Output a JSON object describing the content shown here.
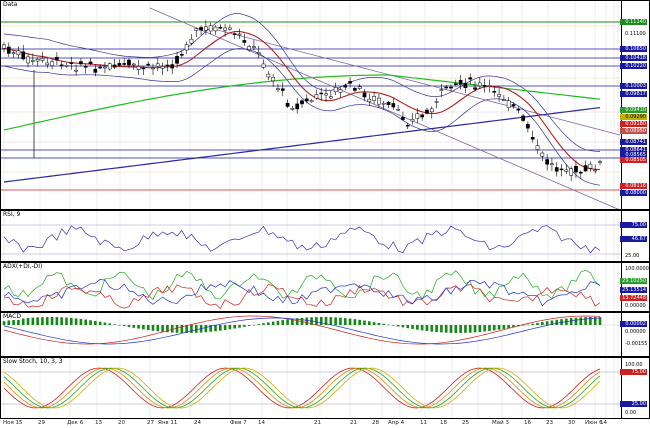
{
  "panels": {
    "price": {
      "title": "Data",
      "ticks": [
        "0.11100",
        "0.10650",
        "0.10050",
        "0.09800",
        "0.09200",
        "0.08600",
        "0.08110",
        "0.08000"
      ]
    },
    "rsi": {
      "title": "RSI, 9",
      "ticks": [
        "75.00",
        "46.67",
        "25.00"
      ]
    },
    "adx": {
      "title": "ADX(+DI,-DI)",
      "ticks": [
        "100.0000",
        "29.10250",
        "25.13514",
        "13.72448",
        "0.00000"
      ]
    },
    "macd": {
      "title": "MACD",
      "ticks": [
        "0.00002",
        "0.00000",
        "-0.00155"
      ]
    },
    "stoch": {
      "title": "Slow Stoch, 10, 3, 3",
      "ticks": [
        "100.00",
        "75.00",
        "25.00",
        "0.00"
      ]
    }
  },
  "price_tags": [
    {
      "label": "0.11140",
      "bg": "#1c8a1c",
      "fg": "#ffffff"
    },
    {
      "label": "0.10650",
      "bg": "#1a1aa0",
      "fg": "#ffffff"
    },
    {
      "label": "0.10418",
      "bg": "#1a1aa0",
      "fg": "#ffffff"
    },
    {
      "label": "0.10220",
      "bg": "#1a1aa0",
      "fg": "#ffffff"
    },
    {
      "label": "0.10003",
      "bg": "#1a1aa0",
      "fg": "#ffffff"
    },
    {
      "label": "0.09817",
      "bg": "#1a1aa0",
      "fg": "#ffffff"
    },
    {
      "label": "0.09410",
      "bg": "#2a9a2a",
      "fg": "#ffffff"
    },
    {
      "label": "0.09290",
      "bg": "#c0b000",
      "fg": "#000000"
    },
    {
      "label": "0.09180",
      "bg": "#cc2222",
      "fg": "#ffffff"
    },
    {
      "label": "0.08950",
      "bg": "#c05050",
      "fg": "#ffffff"
    },
    {
      "label": "0.08741",
      "bg": "#1a1aa0",
      "fg": "#ffffff"
    },
    {
      "label": "0.08641",
      "bg": "#1a1aa0",
      "fg": "#ffffff"
    },
    {
      "label": "0.08565",
      "bg": "#1a1aa0",
      "fg": "#ffffff"
    },
    {
      "label": "0.08505",
      "bg": "#cc2222",
      "fg": "#ffffff"
    },
    {
      "label": "0.08116",
      "bg": "#cc2222",
      "fg": "#ffffff"
    },
    {
      "label": "0.08000",
      "bg": "#1a1aa0",
      "fg": "#ffffff"
    }
  ],
  "indicator_tags": [
    {
      "label": "75.00",
      "bg": "#1a1aa0",
      "fg": "#ffffff"
    },
    {
      "label": "46.67",
      "bg": "#1a1aa0",
      "fg": "#ffffff"
    },
    {
      "label": "29.10250",
      "bg": "#2a9a2a",
      "fg": "#ffffff"
    },
    {
      "label": "25.13514",
      "bg": "#1a1aa0",
      "fg": "#ffffff"
    },
    {
      "label": "13.72448",
      "bg": "#cc2222",
      "fg": "#ffffff"
    },
    {
      "label": "0.00002",
      "bg": "#1a1aa0",
      "fg": "#ffffff"
    },
    {
      "label": "75.00",
      "bg": "#cc2222",
      "fg": "#ffffff"
    },
    {
      "label": "25.00",
      "bg": "#1a1aa0",
      "fg": "#ffffff"
    }
  ],
  "dates": [
    "Ноя 15",
    "29",
    "Дек 6",
    "13",
    "20",
    "27",
    "Янв 11",
    "24",
    "Фев 7",
    "14",
    "21",
    "28",
    "Мар 9",
    "21",
    "28",
    "Апр 4",
    "11",
    "18",
    "25",
    "Май 3",
    "16",
    "23",
    "30",
    "Июн 6",
    "14"
  ],
  "colors": {
    "up": "#ffffff",
    "down": "#000000",
    "ma_red": "#b22222",
    "ma_green": "#22bb22",
    "ma_blue": "#2a2a99",
    "bands": "#333399",
    "rsi": "#3333bb",
    "adx_green": "#22aa22",
    "adx_red": "#cc2222",
    "adx_blue": "#2233cc",
    "macd_hist": "#118811",
    "signal_red": "#cc2222",
    "signal_blue": "#2233cc"
  },
  "icons": {
    "price_panel": "candlestick-chart-icon"
  }
}
